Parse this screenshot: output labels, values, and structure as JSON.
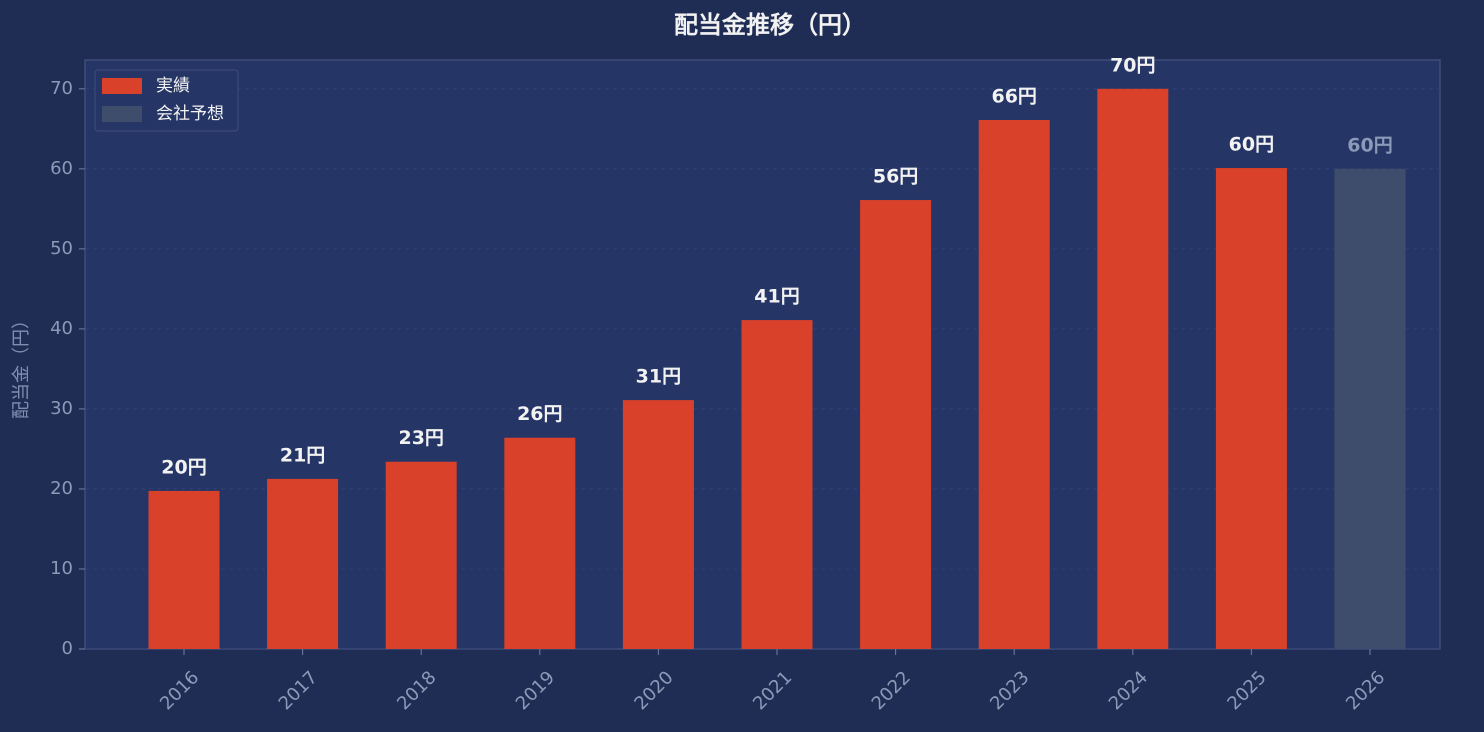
{
  "chart_data": {
    "type": "bar",
    "title": "配当金推移（円）",
    "y_label": "配当金（円）",
    "categories": [
      "2016",
      "2017",
      "2018",
      "2019",
      "2020",
      "2021",
      "2022",
      "2023",
      "2024",
      "2025",
      "2026"
    ],
    "series": [
      {
        "name": "実績",
        "color": "#d9412b",
        "label_color": "#f2f2f2",
        "values": [
          19.75,
          21.25,
          23.4,
          26.4,
          31.1,
          41.1,
          56.1,
          66.1,
          70,
          60.1,
          null
        ],
        "value_labels": [
          "20円",
          "21円",
          "23円",
          "26円",
          "31円",
          "41円",
          "56円",
          "66円",
          "70円",
          "60円",
          null
        ]
      },
      {
        "name": "会社予想",
        "color": "#3d4d6b",
        "label_color": "#8a9bb8",
        "values": [
          null,
          null,
          null,
          null,
          null,
          null,
          null,
          null,
          null,
          null,
          60
        ],
        "value_labels": [
          null,
          null,
          null,
          null,
          null,
          null,
          null,
          null,
          null,
          null,
          "60円"
        ]
      }
    ],
    "ylim": [
      0,
      73.6
    ],
    "yticks": [
      0,
      10,
      20,
      30,
      40,
      50,
      60,
      70
    ],
    "grid": true,
    "legend": "upper-left"
  }
}
